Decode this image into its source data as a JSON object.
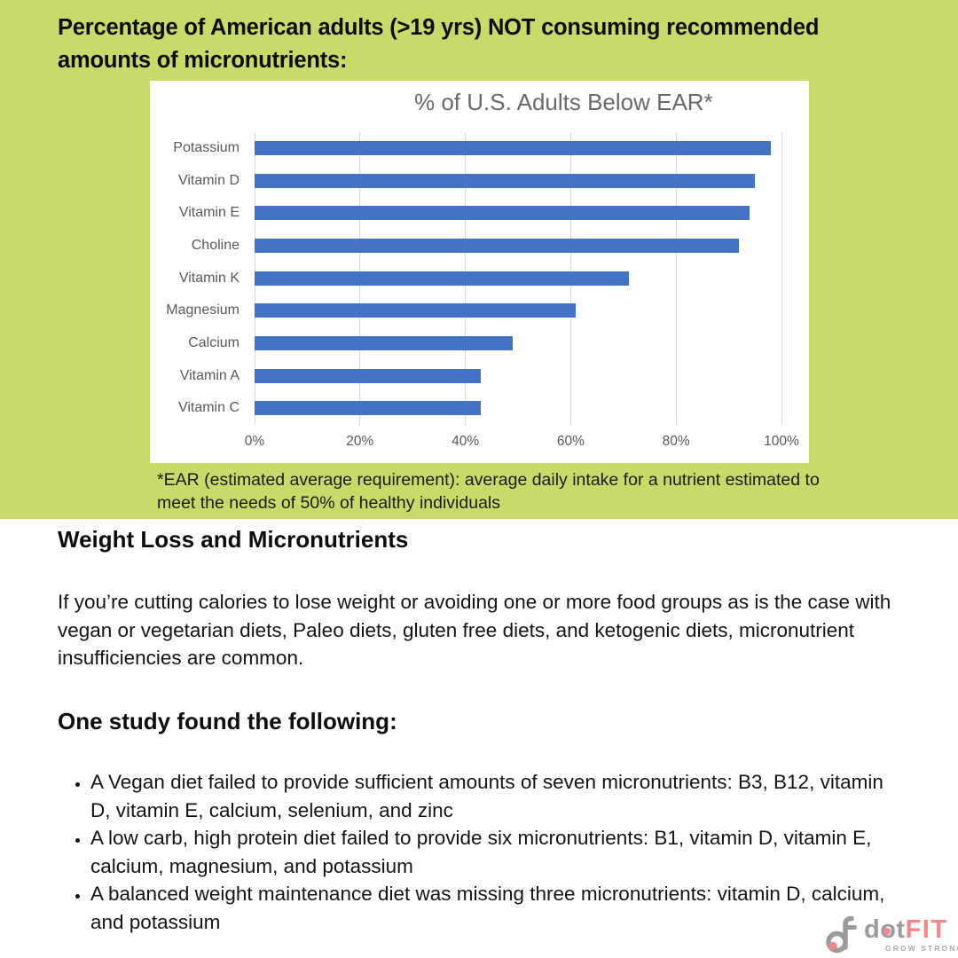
{
  "hero": {
    "title": "Percentage of American adults (>19 yrs) NOT consuming recommended amounts of micronutrients:",
    "background_color": "#c6db68"
  },
  "chart_data": {
    "type": "bar",
    "orientation": "horizontal",
    "title": "% of U.S. Adults Below EAR*",
    "categories": [
      "Potassium",
      "Vitamin D",
      "Vitamin E",
      "Choline",
      "Vitamin K",
      "Magnesium",
      "Calcium",
      "Vitamin A",
      "Vitamin C"
    ],
    "values": [
      98,
      95,
      94,
      92,
      71,
      61,
      49,
      43,
      43
    ],
    "xlabel": "",
    "ylabel": "",
    "xlim": [
      0,
      100
    ],
    "xticks": [
      "0%",
      "20%",
      "40%",
      "60%",
      "80%",
      "100%"
    ],
    "grid": true,
    "legend": false,
    "bar_color": "#4472c4",
    "gridline_color": "#d9d9d9",
    "label_color": "#595959",
    "title_color": "#6a6a6a"
  },
  "footnote": "*EAR (estimated average requirement): average daily intake for a nutrient estimated to meet the needs of 50% of healthy individuals",
  "article": {
    "heading1": "Weight Loss and Micronutrients",
    "paragraph1": "If you’re cutting calories to lose weight or avoiding one or more food groups as is the case with vegan or vegetarian diets, Paleo diets, gluten free diets, and ketogenic diets, micronutrient insufficiencies are common.",
    "heading2": "One study found the following:",
    "bullets": [
      "A Vegan diet failed to provide sufficient amounts of seven micronutrients: B3, B12, vitamin D, vitamin E, calcium, selenium, and zinc",
      "A low carb, high protein diet failed to provide six micronutrients: B1, vitamin D, vitamin E, calcium, magnesium, and potassium",
      "A balanced weight maintenance diet was missing three micronutrients: vitamin D, calcium, and potassium"
    ]
  },
  "logo": {
    "brand_dot": "dot",
    "brand_fit": "FIT",
    "tagline": "GROW STRONG.",
    "gray": "#9b9b9b",
    "pink": "#f0898c"
  }
}
